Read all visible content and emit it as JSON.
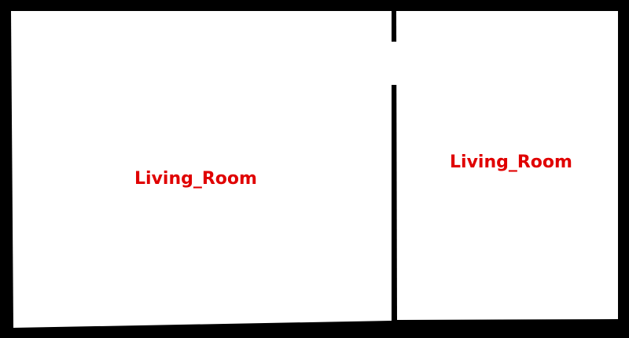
{
  "floorplan": {
    "background_color": "#000000",
    "floor_color": "#ffffff",
    "label_color": "#e00000",
    "rooms": [
      {
        "label": "Living_Room"
      },
      {
        "label": "Living_Room"
      }
    ]
  }
}
